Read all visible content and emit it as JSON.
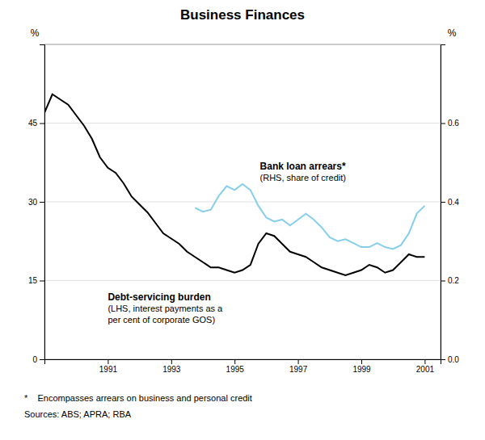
{
  "chart_data": {
    "type": "line",
    "title": "Business Finances",
    "ylabel": "%",
    "y2label": "%",
    "x": [
      1989.0,
      1989.25,
      1989.5,
      1989.75,
      1990.0,
      1990.25,
      1990.5,
      1990.75,
      1991.0,
      1991.25,
      1991.5,
      1991.75,
      1992.0,
      1992.25,
      1992.5,
      1992.75,
      1993.0,
      1993.25,
      1993.5,
      1993.75,
      1994.0,
      1994.25,
      1994.5,
      1994.75,
      1995.0,
      1995.25,
      1995.5,
      1995.75,
      1996.0,
      1996.25,
      1996.5,
      1996.75,
      1997.0,
      1997.25,
      1997.5,
      1997.75,
      1998.0,
      1998.25,
      1998.5,
      1998.75,
      1999.0,
      1999.25,
      1999.5,
      1999.75,
      2000.0,
      2000.25,
      2000.5,
      2000.75,
      2001.0
    ],
    "series": [
      {
        "color": "#000000",
        "axis": "y",
        "values": [
          47.0,
          50.5,
          49.5,
          48.5,
          46.5,
          44.5,
          42.0,
          38.5,
          36.5,
          35.5,
          33.5,
          31.0,
          29.5,
          28.0,
          26.0,
          24.0,
          23.0,
          22.0,
          20.5,
          19.5,
          18.5,
          17.5,
          17.5,
          17.0,
          16.5,
          17.0,
          18.0,
          22.0,
          24.0,
          23.5,
          22.0,
          20.5,
          20.0,
          19.5,
          18.5,
          17.5,
          17.0,
          16.5,
          16.0,
          16.5,
          17.0,
          18.0,
          17.5,
          16.5,
          17.0,
          18.5,
          20.0,
          19.5,
          19.5
        ]
      },
      {
        "color": "#87ceeb",
        "axis": "y2",
        "values": [
          null,
          null,
          null,
          null,
          null,
          null,
          null,
          null,
          null,
          null,
          null,
          null,
          null,
          null,
          null,
          null,
          null,
          null,
          null,
          0.385,
          0.375,
          0.38,
          0.415,
          0.44,
          0.43,
          0.445,
          0.43,
          0.39,
          0.36,
          0.35,
          0.355,
          0.34,
          0.355,
          0.37,
          0.355,
          0.335,
          0.31,
          0.3,
          0.305,
          0.295,
          0.285,
          0.285,
          0.295,
          0.285,
          0.28,
          0.29,
          0.32,
          0.37,
          0.39
        ]
      }
    ],
    "xlim": [
      1989.0,
      2001.5
    ],
    "xticks": [
      1991,
      1993,
      1995,
      1997,
      1999,
      2001
    ],
    "ylim": [
      0,
      60
    ],
    "yticks": [
      0,
      15,
      30,
      45
    ],
    "y2lim": [
      0.0,
      0.8
    ],
    "y2ticks": [
      {
        "value": 0.0,
        "label": "0.0"
      },
      0.2,
      0.4,
      0.6
    ],
    "grid": true,
    "annotations": [
      [
        "Bank loan arrears*",
        "(RHS, share of credit)"
      ],
      [
        "Debt-servicing burden",
        "(LHS, interest payments as a",
        "per cent of corporate GOS)"
      ]
    ],
    "footnotes": [
      "*    Encompasses arrears on business and personal credit",
      "Sources: ABS; APRA; RBA"
    ]
  }
}
